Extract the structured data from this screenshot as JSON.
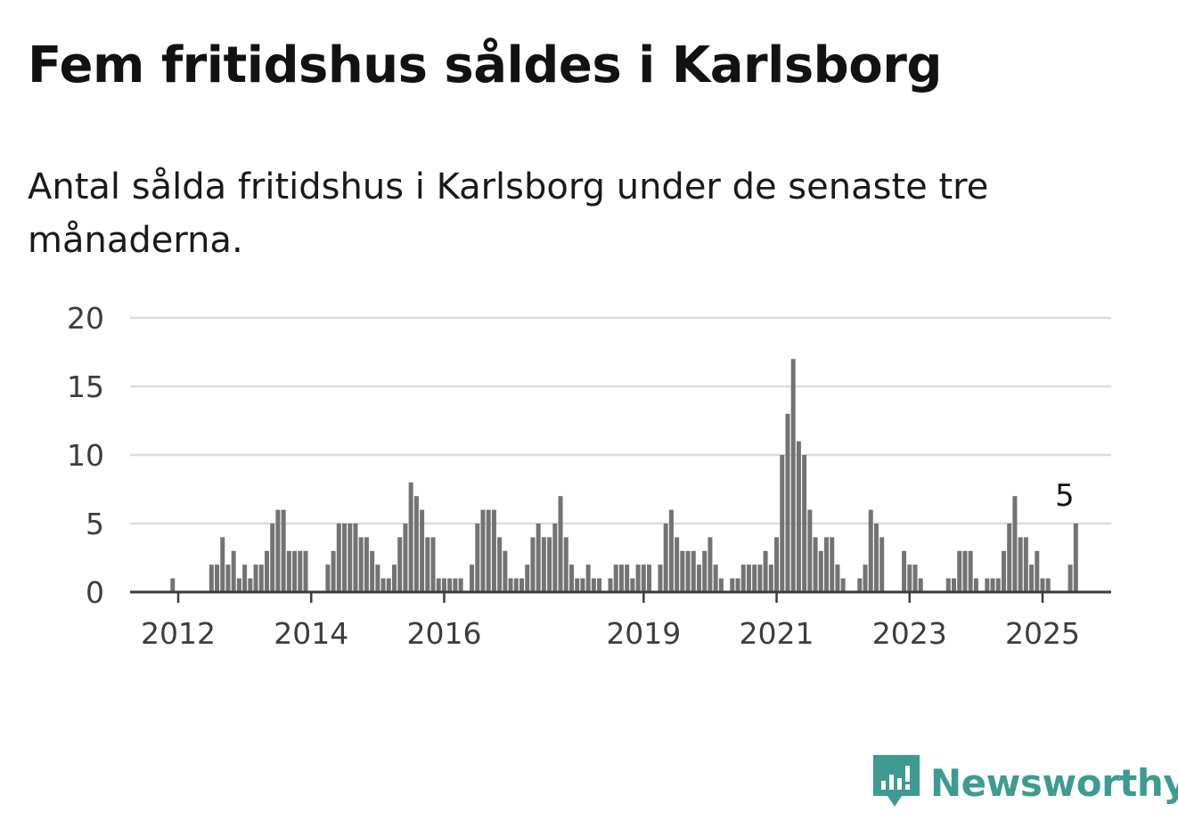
{
  "title": "Fem fritidshus såldes i Karlsborg",
  "subtitle": "Antal sålda fritidshus i Karlsborg under de senaste tre månaderna.",
  "brand": {
    "name": "Newsworthy",
    "icon": "newsworthy-logo-icon",
    "color": "#3e9b91"
  },
  "colors": {
    "bar": "#737373",
    "highlight": "#1f9e93",
    "grid": "#dcdcdc"
  },
  "chart_data": {
    "type": "bar",
    "title": "Fem fritidshus såldes i Karlsborg",
    "ylim": [
      0,
      20
    ],
    "y_ticks": [
      0,
      5,
      10,
      15,
      20
    ],
    "x_ticks": [
      "2012",
      "2014",
      "2016",
      "2019",
      "2021",
      "2023",
      "2025"
    ],
    "grid": true,
    "x_start": "2011-03",
    "x_end": "2025-05",
    "series": [
      {
        "values": [
          0,
          0,
          0,
          0,
          0,
          0,
          0,
          0,
          0,
          1,
          0,
          0,
          0,
          0,
          0,
          0,
          2,
          2,
          4,
          2,
          3,
          1,
          2,
          1,
          2,
          2,
          3,
          5,
          6,
          6,
          3,
          3,
          3,
          3,
          0,
          0,
          0,
          2,
          3,
          5,
          5,
          5,
          5,
          4,
          4,
          3,
          2,
          1,
          1,
          2,
          4,
          5,
          8,
          7,
          6,
          4,
          4,
          1,
          1,
          1,
          1,
          1,
          0,
          2,
          5,
          6,
          6,
          6,
          4,
          3,
          1,
          1,
          1,
          2,
          4,
          5,
          4,
          4,
          5,
          7,
          4,
          2,
          1,
          1,
          2,
          1,
          1,
          0,
          1,
          2,
          2,
          2,
          1,
          2,
          2,
          2,
          0,
          2,
          5,
          6,
          4,
          3,
          3,
          3,
          2,
          3,
          4,
          2,
          1,
          0,
          1,
          1,
          2,
          2,
          2,
          2,
          3,
          2,
          4,
          10,
          13,
          17,
          11,
          10,
          6,
          4,
          3,
          4,
          4,
          2,
          1,
          0,
          0,
          1,
          2,
          6,
          5,
          4,
          0,
          0,
          0,
          3,
          2,
          2,
          1,
          0,
          0,
          0,
          0,
          1,
          1,
          3,
          3,
          3,
          1,
          0,
          1,
          1,
          1,
          3,
          5,
          7,
          4,
          4,
          2,
          3,
          1,
          1,
          0,
          0,
          0,
          2,
          5
        ]
      }
    ],
    "highlight": {
      "x": "2025-05",
      "value": 5,
      "label": "5"
    }
  }
}
